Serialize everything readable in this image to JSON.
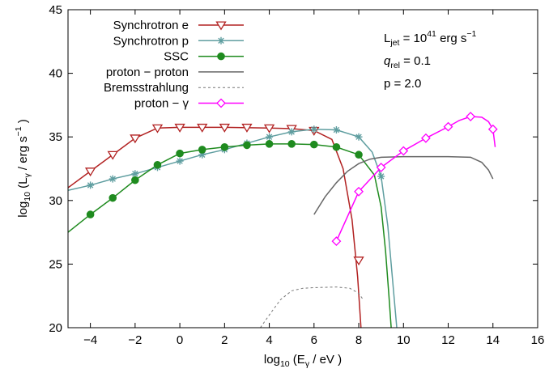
{
  "chart_data": {
    "type": "line",
    "title": "",
    "xlabel": {
      "pre": "log",
      "sub1": "10",
      "mid": " (E",
      "sub2": "γ",
      "post": " / eV )"
    },
    "ylabel": {
      "pre": "log",
      "sub1": "10",
      "mid": " (L",
      "sub2": "γ",
      "mid2": " / erg s",
      "sup": "−1",
      "post": " )"
    },
    "xlim": [
      -5,
      16
    ],
    "ylim": [
      20,
      45
    ],
    "xticks": [
      "−4",
      "−2",
      "0",
      "2",
      "4",
      "6",
      "8",
      "10",
      "12",
      "14",
      "16"
    ],
    "xtick_values": [
      -4,
      -2,
      0,
      2,
      4,
      6,
      8,
      10,
      12,
      14,
      16
    ],
    "yticks": [
      "20",
      "25",
      "30",
      "35",
      "40",
      "45"
    ],
    "ytick_values": [
      20,
      25,
      30,
      35,
      40,
      45
    ],
    "grid": false,
    "legend_position": "top-left",
    "annotations": {
      "ljet": {
        "pre": "L",
        "sub": "jet",
        "mid": " = 10",
        "sup": "41",
        "post": " erg s",
        "sup2": "−1"
      },
      "qrel": {
        "pre": "q",
        "sub": "rel",
        "post": " = 0.1"
      },
      "p": "p = 2.0"
    },
    "series": [
      {
        "name": "Synchrotron e",
        "color": "#b22222",
        "marker": "triangle-down-open",
        "line": "solid",
        "curve": [
          [
            -5,
            31.0
          ],
          [
            -4,
            32.3
          ],
          [
            -3,
            33.6
          ],
          [
            -2,
            34.9
          ],
          [
            -1,
            35.7
          ],
          [
            0,
            35.75
          ],
          [
            2,
            35.75
          ],
          [
            4,
            35.7
          ],
          [
            5,
            35.65
          ],
          [
            6,
            35.5
          ],
          [
            6.8,
            34.8
          ],
          [
            7.3,
            32.5
          ],
          [
            7.7,
            28.5
          ],
          [
            7.95,
            24.0
          ],
          [
            8.1,
            20.0
          ]
        ],
        "markers": [
          [
            -4,
            32.3
          ],
          [
            -3,
            33.6
          ],
          [
            -2,
            34.9
          ],
          [
            -1,
            35.7
          ],
          [
            0,
            35.75
          ],
          [
            1,
            35.75
          ],
          [
            2,
            35.75
          ],
          [
            3,
            35.75
          ],
          [
            4,
            35.7
          ],
          [
            5,
            35.65
          ],
          [
            6,
            35.5
          ],
          [
            8,
            25.3
          ]
        ]
      },
      {
        "name": "Synchrotron p",
        "color": "#5f9ea0",
        "marker": "star",
        "line": "solid",
        "curve": [
          [
            -5,
            30.8
          ],
          [
            -4,
            31.2
          ],
          [
            -3,
            31.7
          ],
          [
            -2,
            32.1
          ],
          [
            -1,
            32.6
          ],
          [
            0,
            33.1
          ],
          [
            1,
            33.6
          ],
          [
            2,
            34.0
          ],
          [
            3,
            34.5
          ],
          [
            4,
            35.0
          ],
          [
            5,
            35.4
          ],
          [
            6,
            35.6
          ],
          [
            7,
            35.55
          ],
          [
            8,
            35.0
          ],
          [
            8.6,
            33.8
          ],
          [
            9.0,
            31.9
          ],
          [
            9.3,
            28.0
          ],
          [
            9.55,
            23.0
          ],
          [
            9.7,
            20.0
          ]
        ],
        "markers": [
          [
            -4,
            31.2
          ],
          [
            -3,
            31.7
          ],
          [
            -2,
            32.1
          ],
          [
            -1,
            32.6
          ],
          [
            0,
            33.1
          ],
          [
            1,
            33.6
          ],
          [
            2,
            34.0
          ],
          [
            3,
            34.5
          ],
          [
            4,
            35.0
          ],
          [
            5,
            35.4
          ],
          [
            6,
            35.6
          ],
          [
            7,
            35.55
          ],
          [
            8,
            35.0
          ],
          [
            9,
            31.9
          ]
        ]
      },
      {
        "name": "SSC",
        "color": "#1f8b1f",
        "marker": "circle-filled",
        "line": "solid",
        "curve": [
          [
            -5,
            27.5
          ],
          [
            -4,
            28.9
          ],
          [
            -3,
            30.2
          ],
          [
            -2,
            31.6
          ],
          [
            -1,
            32.8
          ],
          [
            0,
            33.7
          ],
          [
            1,
            34.0
          ],
          [
            2,
            34.2
          ],
          [
            3,
            34.35
          ],
          [
            4,
            34.45
          ],
          [
            5,
            34.45
          ],
          [
            6,
            34.4
          ],
          [
            7,
            34.2
          ],
          [
            8,
            33.6
          ],
          [
            8.7,
            32.0
          ],
          [
            9.0,
            29.5
          ],
          [
            9.2,
            26.0
          ],
          [
            9.35,
            22.5
          ],
          [
            9.45,
            20.0
          ]
        ],
        "markers": [
          [
            -4,
            28.9
          ],
          [
            -3,
            30.2
          ],
          [
            -2,
            31.6
          ],
          [
            -1,
            32.8
          ],
          [
            0,
            33.7
          ],
          [
            1,
            34.0
          ],
          [
            2,
            34.2
          ],
          [
            3,
            34.35
          ],
          [
            4,
            34.45
          ],
          [
            5,
            34.45
          ],
          [
            6,
            34.4
          ],
          [
            7,
            34.2
          ],
          [
            8,
            33.6
          ]
        ]
      },
      {
        "name": "proton − proton",
        "color": "#666666",
        "marker": "none",
        "line": "solid",
        "curve": [
          [
            6,
            28.9
          ],
          [
            6.5,
            30.3
          ],
          [
            7,
            31.4
          ],
          [
            7.5,
            32.3
          ],
          [
            8,
            32.9
          ],
          [
            8.5,
            33.25
          ],
          [
            9,
            33.4
          ],
          [
            10,
            33.45
          ],
          [
            11,
            33.45
          ],
          [
            12,
            33.45
          ],
          [
            13,
            33.4
          ],
          [
            13.5,
            33.0
          ],
          [
            13.8,
            32.4
          ],
          [
            14,
            31.7
          ]
        ],
        "markers": []
      },
      {
        "name": "Bremsstrahlung",
        "color": "#777777",
        "marker": "none",
        "line": "dashed",
        "curve": [
          [
            3.6,
            20.0
          ],
          [
            4,
            21.0
          ],
          [
            4.5,
            22.2
          ],
          [
            5,
            22.9
          ],
          [
            5.5,
            23.1
          ],
          [
            6,
            23.15
          ],
          [
            7,
            23.2
          ],
          [
            7.6,
            23.1
          ],
          [
            8,
            22.7
          ],
          [
            8.2,
            22.2
          ]
        ],
        "markers": []
      },
      {
        "name": "proton − γ",
        "color": "#ff00ff",
        "marker": "diamond-open",
        "line": "solid",
        "curve": [
          [
            7,
            26.8
          ],
          [
            8,
            30.7
          ],
          [
            9,
            32.6
          ],
          [
            10,
            33.9
          ],
          [
            11,
            34.9
          ],
          [
            12,
            35.8
          ],
          [
            12.5,
            36.3
          ],
          [
            13,
            36.6
          ],
          [
            13.5,
            36.55
          ],
          [
            13.8,
            36.2
          ],
          [
            14,
            35.6
          ],
          [
            14.1,
            34.2
          ]
        ],
        "markers": [
          [
            7,
            26.8
          ],
          [
            8,
            30.7
          ],
          [
            9,
            32.6
          ],
          [
            10,
            33.9
          ],
          [
            11,
            34.9
          ],
          [
            12,
            35.8
          ],
          [
            13,
            36.6
          ],
          [
            14,
            35.6
          ]
        ]
      }
    ]
  }
}
